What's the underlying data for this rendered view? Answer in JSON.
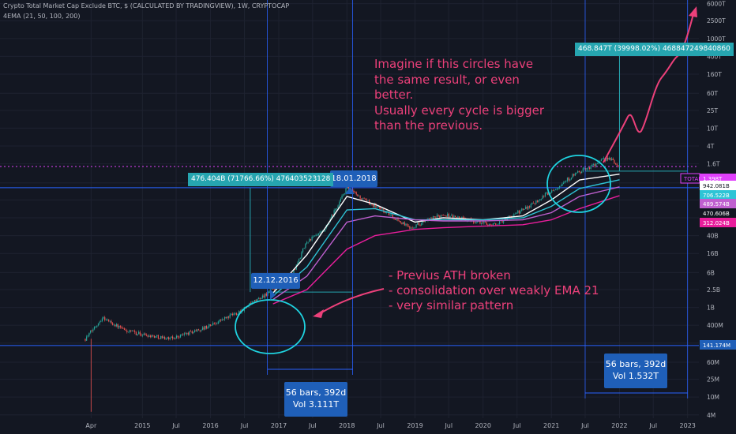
{
  "header": {
    "title": "Crypto Total Market Cap Exclude BTC, $ (CALCULATED BY TRADINGVIEW), 1W, CRYPTOCAP",
    "indicator": "4EMA (21, 50, 100, 200)"
  },
  "annotations": {
    "imagine_lines": [
      "Imagine if this circles have",
      "the same result, or even",
      "better.",
      "Usually every cycle is bigger",
      "than the previous."
    ],
    "pattern_lines": [
      "- Previus ATH broken",
      "- consolidation over weakly EMA 21",
      "- very similar pattern"
    ],
    "date_label_2016": "12.12.2016",
    "date_label_2018": "18.01.2018",
    "measure_2017": "476.404B (71766.66%) 476403523128",
    "measure_future": "468.847T (39998.02%) 468847249840860",
    "bars_2017_line1": "56 bars, 392d",
    "bars_2017_line2": "Vol 3.111T",
    "bars_2021_line1": "56 bars, 392d",
    "bars_2021_line2": "Vol 1.532T"
  },
  "colors": {
    "background": "#131722",
    "candle_up": "#26a69a",
    "candle_down": "#ef5350",
    "ema21": "#ffffff",
    "ema50": "#2ec4d6",
    "ema100": "#c060d0",
    "ema200": "#e91e9c",
    "annotation_text": "#ec407a",
    "range_box": "#1f5fb8",
    "circle": "#1fd3e0"
  },
  "chart_data": {
    "type": "line",
    "scale": "log",
    "x_tick_labels": [
      "Apr",
      "2015",
      "Jul",
      "2016",
      "Jul",
      "2017",
      "Jul",
      "2018",
      "Jul",
      "2019",
      "Jul",
      "2020",
      "Jul",
      "2021",
      "Jul",
      "2022",
      "Jul",
      "2023"
    ],
    "y_tick_labels": [
      "6000T",
      "2500T",
      "1000T",
      "400T",
      "160T",
      "60T",
      "25T",
      "10T",
      "4T",
      "1.6T",
      "600B",
      "250B",
      "100B",
      "40B",
      "16B",
      "6B",
      "2.5B",
      "1B",
      "400M",
      "160M",
      "60M",
      "25M",
      "10M",
      "4M"
    ],
    "price_labels": [
      {
        "text": "TOTAL2",
        "color": "#e040fb"
      },
      {
        "text": "1.398T",
        "color": "#e040fb"
      },
      {
        "text": "942.081B",
        "color": "#ffffff"
      },
      {
        "text": "706.522B",
        "color": "#2ec4d6"
      },
      {
        "text": "489.574B",
        "color": "#c060d0"
      },
      {
        "text": "470.606B",
        "color": "#ffffff"
      },
      {
        "text": "312.024B",
        "color": "#e91e9c"
      },
      {
        "text": "141.174M",
        "color": "#1f5fb8"
      }
    ],
    "series": [
      {
        "name": "TOTAL2",
        "x": [
          "2014-03",
          "2014-06",
          "2014-10",
          "2015-01",
          "2015-06",
          "2015-12",
          "2016-06",
          "2016-12",
          "2017-03",
          "2017-06",
          "2017-09",
          "2018-01",
          "2018-04",
          "2018-07",
          "2018-12",
          "2019-06",
          "2019-12",
          "2020-03",
          "2020-08",
          "2021-01",
          "2021-05",
          "2021-11",
          "2022-01"
        ],
        "y": [
          0.2,
          0.6,
          0.3,
          0.25,
          0.2,
          0.35,
          0.8,
          2.5,
          4,
          30,
          50,
          470,
          250,
          160,
          60,
          120,
          80,
          70,
          150,
          400,
          900,
          2200,
          1400
        ]
      },
      {
        "name": "EMA 21",
        "x": [
          "2016-12",
          "2017-06",
          "2018-01",
          "2018-06",
          "2019-01",
          "2019-06",
          "2020-01",
          "2020-08",
          "2021-01",
          "2021-06",
          "2022-01"
        ],
        "y": [
          2.1,
          15,
          300,
          200,
          80,
          100,
          90,
          110,
          250,
          700,
          942.081
        ]
      },
      {
        "name": "EMA 50",
        "x": [
          "2016-12",
          "2017-06",
          "2018-01",
          "2018-06",
          "2019-01",
          "2019-06",
          "2020-01",
          "2020-08",
          "2021-01",
          "2021-06",
          "2022-01"
        ],
        "y": [
          1.8,
          8,
          150,
          160,
          90,
          90,
          90,
          100,
          180,
          450,
          706.522
        ]
      },
      {
        "name": "EMA 100",
        "x": [
          "2016-12",
          "2017-06",
          "2018-01",
          "2018-06",
          "2019-01",
          "2019-06",
          "2020-01",
          "2020-08",
          "2021-01",
          "2021-06",
          "2022-01"
        ],
        "y": [
          1.5,
          5,
          80,
          110,
          90,
          85,
          85,
          90,
          130,
          300,
          489.574
        ]
      },
      {
        "name": "EMA 200",
        "x": [
          "2016-12",
          "2017-06",
          "2018-01",
          "2018-06",
          "2019-01",
          "2019-06",
          "2020-01",
          "2020-08",
          "2021-01",
          "2021-06",
          "2022-01"
        ],
        "y": [
          1.2,
          2.5,
          20,
          40,
          55,
          60,
          65,
          70,
          90,
          160,
          312.024
        ]
      }
    ]
  }
}
